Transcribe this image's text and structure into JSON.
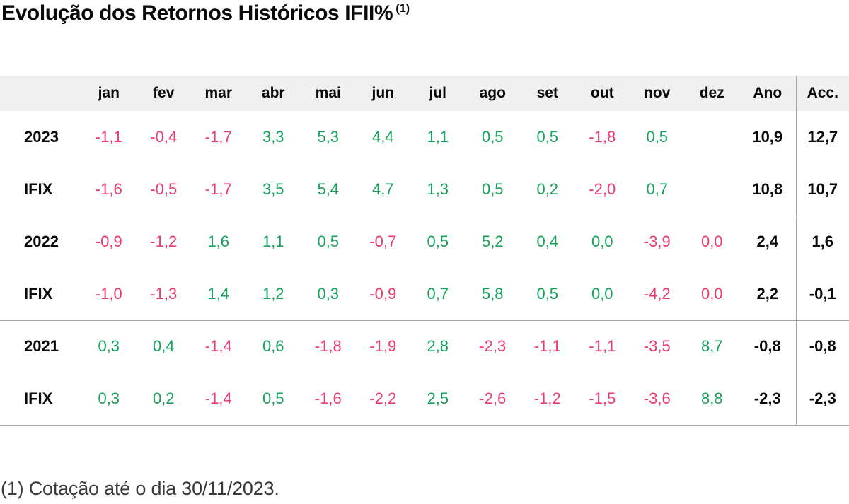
{
  "title": {
    "text": "Evolução dos Retornos Históricos IFII%",
    "superscript": "(1)"
  },
  "footnote": "(1) Cotação até o dia 30/11/2023.",
  "colors": {
    "positive": "#16a25a",
    "negative": "#ed3a6e",
    "header_bg": "#f0f0f0",
    "rule": "#a6a6a6",
    "text": "#141414"
  },
  "table": {
    "label_header": "",
    "month_headers": [
      "jan",
      "fev",
      "mar",
      "abr",
      "mai",
      "jun",
      "jul",
      "ago",
      "set",
      "out",
      "nov",
      "dez"
    ],
    "summary_headers": [
      "Ano",
      "Acc."
    ],
    "rows": [
      {
        "label": "2023",
        "separator": false,
        "values": [
          "-1,1",
          "-0,4",
          "-1,7",
          "3,3",
          "5,3",
          "4,4",
          "1,1",
          "0,5",
          "0,5",
          "-1,8",
          "0,5",
          ""
        ],
        "tones": [
          "n",
          "n",
          "n",
          "p",
          "p",
          "p",
          "p",
          "p",
          "p",
          "n",
          "p",
          ""
        ],
        "ano": "10,9",
        "acc": "12,7"
      },
      {
        "label": "IFIX",
        "separator": false,
        "values": [
          "-1,6",
          "-0,5",
          "-1,7",
          "3,5",
          "5,4",
          "4,7",
          "1,3",
          "0,5",
          "0,2",
          "-2,0",
          "0,7",
          ""
        ],
        "tones": [
          "n",
          "n",
          "n",
          "p",
          "p",
          "p",
          "p",
          "p",
          "p",
          "n",
          "p",
          ""
        ],
        "ano": "10,8",
        "acc": "10,7"
      },
      {
        "label": "2022",
        "separator": true,
        "values": [
          "-0,9",
          "-1,2",
          "1,6",
          "1,1",
          "0,5",
          "-0,7",
          "0,5",
          "5,2",
          "0,4",
          "0,0",
          "-3,9",
          "0,0"
        ],
        "tones": [
          "n",
          "n",
          "p",
          "p",
          "p",
          "n",
          "p",
          "p",
          "p",
          "p",
          "n",
          "n"
        ],
        "ano": "2,4",
        "acc": "1,6"
      },
      {
        "label": "IFIX",
        "separator": false,
        "values": [
          "-1,0",
          "-1,3",
          "1,4",
          "1,2",
          "0,3",
          "-0,9",
          "0,7",
          "5,8",
          "0,5",
          "0,0",
          "-4,2",
          "0,0"
        ],
        "tones": [
          "n",
          "n",
          "p",
          "p",
          "p",
          "n",
          "p",
          "p",
          "p",
          "p",
          "n",
          "n"
        ],
        "ano": "2,2",
        "acc": "-0,1"
      },
      {
        "label": "2021",
        "separator": true,
        "values": [
          "0,3",
          "0,4",
          "-1,4",
          "0,6",
          "-1,8",
          "-1,9",
          "2,8",
          "-2,3",
          "-1,1",
          "-1,1",
          "-3,5",
          "8,7"
        ],
        "tones": [
          "p",
          "p",
          "n",
          "p",
          "n",
          "n",
          "p",
          "n",
          "n",
          "n",
          "n",
          "p"
        ],
        "ano": "-0,8",
        "acc": "-0,8"
      },
      {
        "label": "IFIX",
        "separator": false,
        "values": [
          "0,3",
          "0,2",
          "-1,4",
          "0,5",
          "-1,6",
          "-2,2",
          "2,5",
          "-2,6",
          "-1,2",
          "-1,5",
          "-3,6",
          "8,8"
        ],
        "tones": [
          "p",
          "p",
          "n",
          "p",
          "n",
          "n",
          "p",
          "n",
          "n",
          "n",
          "n",
          "p"
        ],
        "ano": "-2,3",
        "acc": "-2,3"
      }
    ]
  }
}
